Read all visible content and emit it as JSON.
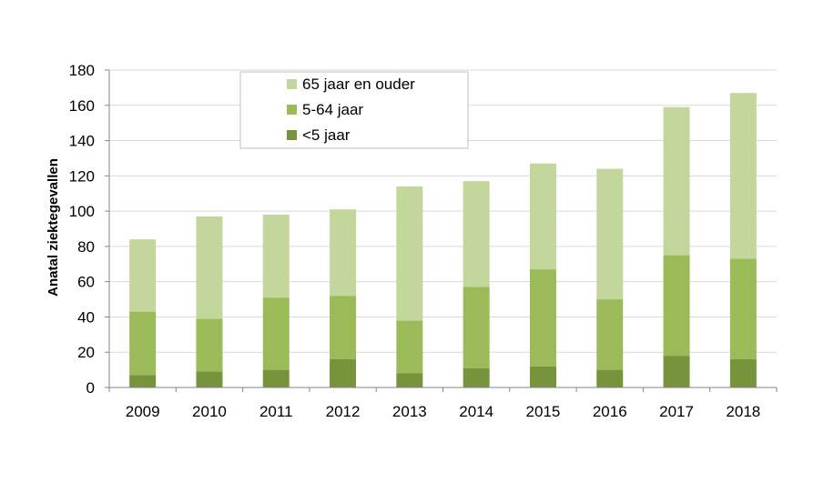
{
  "chart_data": {
    "type": "bar",
    "stacked": true,
    "title": "",
    "xlabel": "",
    "ylabel": "Anatal ziektegevallen",
    "categories": [
      "2009",
      "2010",
      "2011",
      "2012",
      "2013",
      "2014",
      "2015",
      "2016",
      "2017",
      "2018"
    ],
    "ylim": [
      0,
      180
    ],
    "yticks": [
      0,
      20,
      40,
      60,
      80,
      100,
      120,
      140,
      160,
      180
    ],
    "grid": true,
    "legend_position": "top-left",
    "series": [
      {
        "name": "<5 jaar",
        "color": "#77933c",
        "values": [
          7,
          9,
          10,
          16,
          8,
          11,
          12,
          10,
          18,
          16
        ]
      },
      {
        "name": "5-64 jaar",
        "color": "#9bbb59",
        "values": [
          36,
          30,
          41,
          36,
          30,
          46,
          55,
          40,
          57,
          57
        ]
      },
      {
        "name": "65 jaar en ouder",
        "color": "#c3d69b",
        "values": [
          41,
          58,
          47,
          49,
          76,
          60,
          60,
          74,
          84,
          94
        ]
      }
    ],
    "legend_order": [
      "65 jaar en ouder",
      "5-64 jaar",
      "<5 jaar"
    ]
  }
}
